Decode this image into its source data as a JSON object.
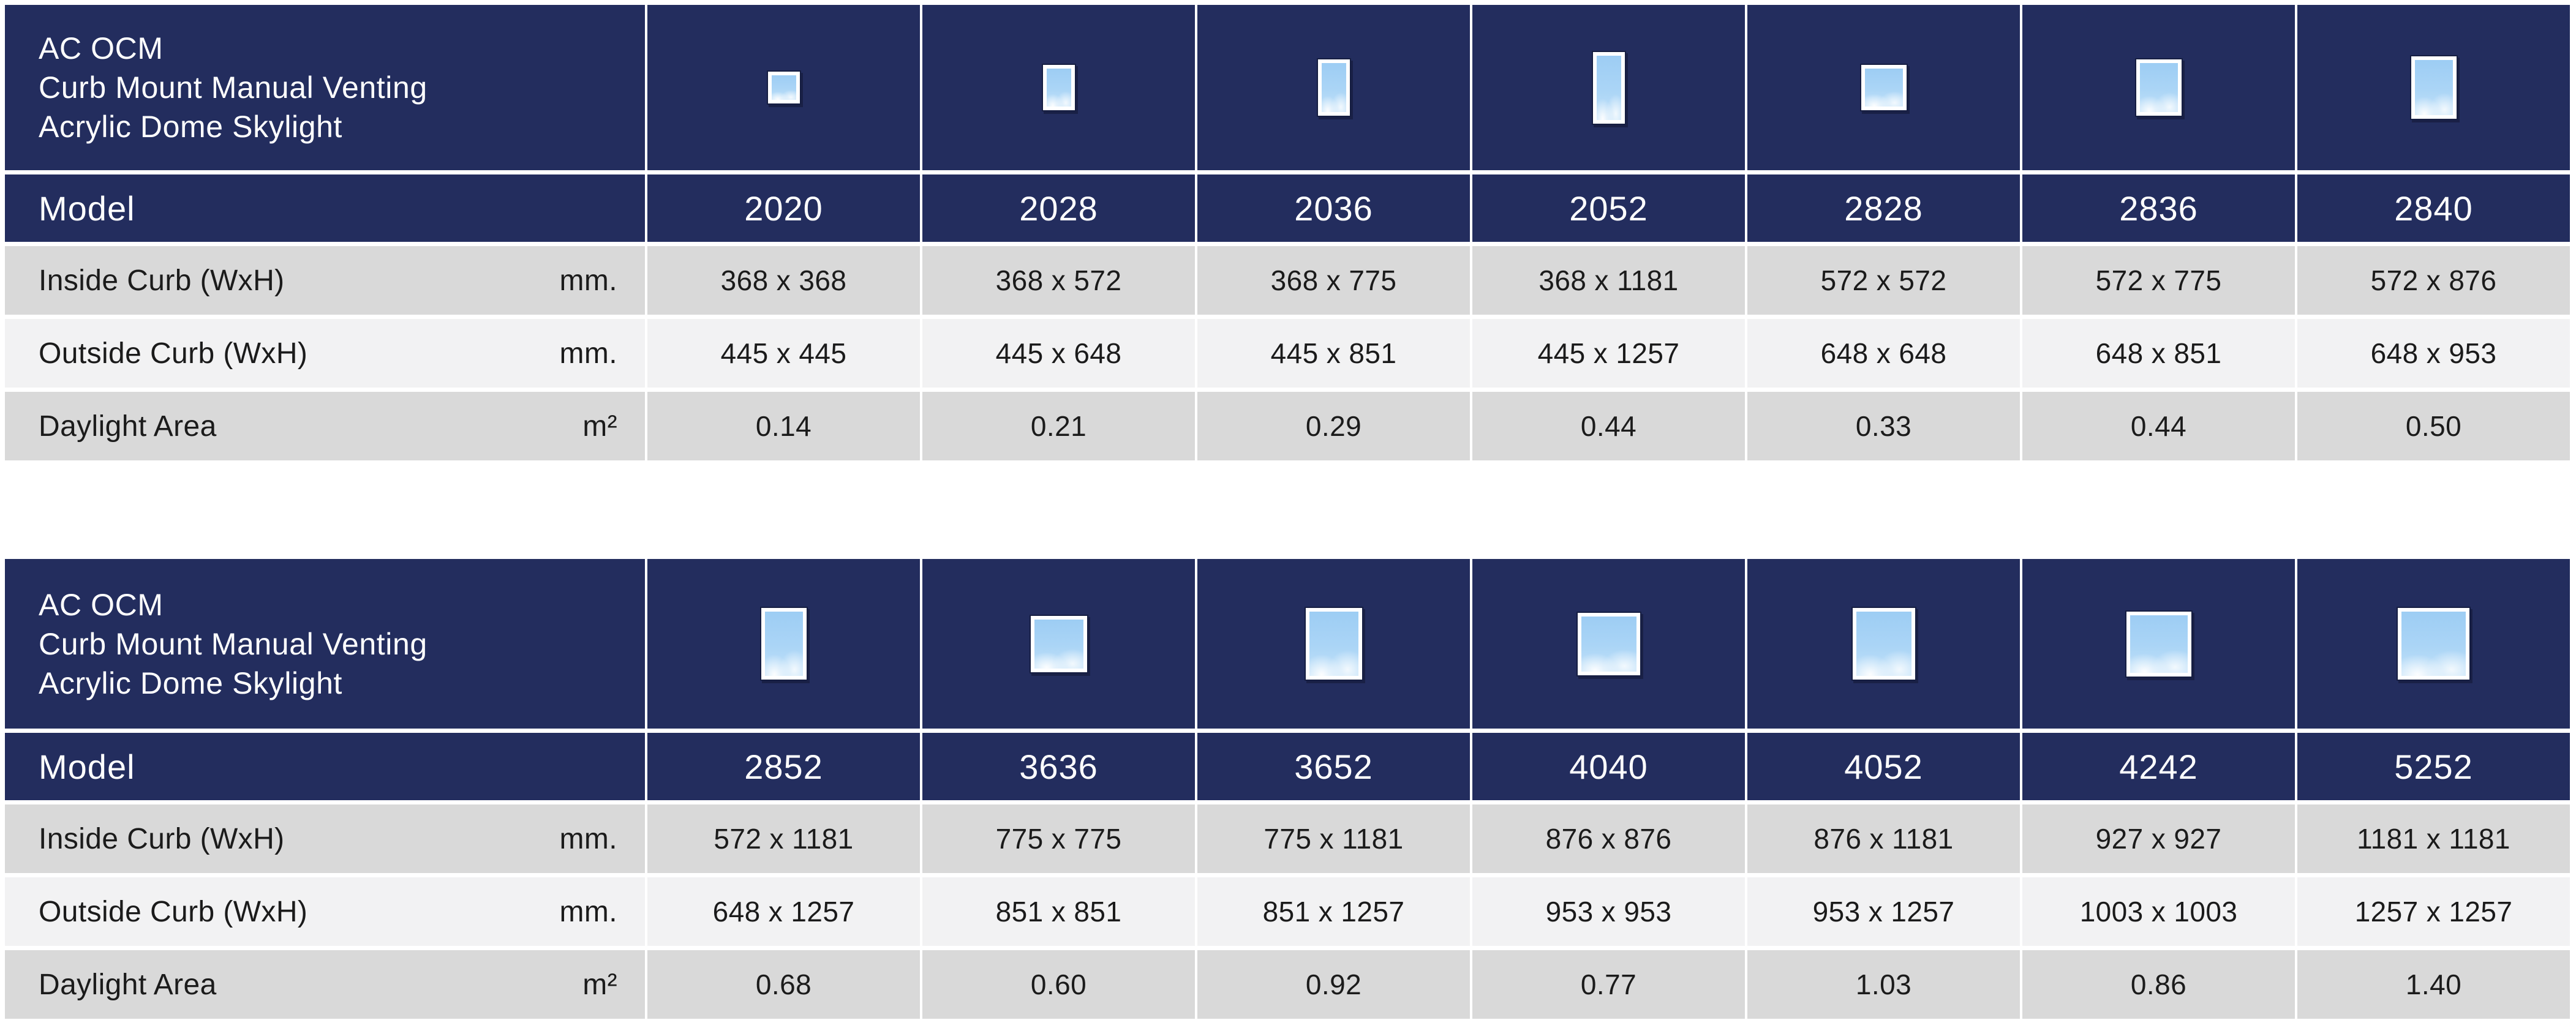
{
  "colors": {
    "navy": "#232d5e",
    "row_gray": "#d9d9d9",
    "row_light": "#f2f2f3",
    "divider_white": "#ffffff",
    "sky_blue": "#a9d3f5",
    "frame_white": "#ffffff",
    "text_dark": "#1b1b1b"
  },
  "icons": {
    "column_thumbnail": "skylight-top-view-sky-icon"
  },
  "tables": [
    {
      "title_lines": [
        "AC OCM",
        "Curb Mount Manual Venting",
        "Acrylic Dome Skylight"
      ],
      "model_label": "Model",
      "rows": [
        {
          "key": "inside_curb",
          "label": "Inside Curb (WxH)",
          "unit": "mm."
        },
        {
          "key": "outside_curb",
          "label": "Outside Curb (WxH)",
          "unit": "mm."
        },
        {
          "key": "daylight_area",
          "label": "Daylight Area",
          "unit": "m²"
        }
      ],
      "columns": [
        {
          "model": "2020",
          "inside_curb": "368 x 368",
          "outside_curb": "445 x 445",
          "daylight_area": "0.14",
          "thumb": {
            "w": 40,
            "h": 40
          }
        },
        {
          "model": "2028",
          "inside_curb": "368 x 572",
          "outside_curb": "445 x 648",
          "daylight_area": "0.21",
          "thumb": {
            "w": 40,
            "h": 62
          }
        },
        {
          "model": "2036",
          "inside_curb": "368 x 775",
          "outside_curb": "445 x 851",
          "daylight_area": "0.29",
          "thumb": {
            "w": 40,
            "h": 80
          }
        },
        {
          "model": "2052",
          "inside_curb": "368 x 1181",
          "outside_curb": "445 x 1257",
          "daylight_area": "0.44",
          "thumb": {
            "w": 40,
            "h": 105
          }
        },
        {
          "model": "2828",
          "inside_curb": "572 x 572",
          "outside_curb": "648 x 648",
          "daylight_area": "0.33",
          "thumb": {
            "w": 62,
            "h": 62
          }
        },
        {
          "model": "2836",
          "inside_curb": "572 x 775",
          "outside_curb": "648 x 851",
          "daylight_area": "0.44",
          "thumb": {
            "w": 62,
            "h": 80
          }
        },
        {
          "model": "2840",
          "inside_curb": "572 x 876",
          "outside_curb": "648 x 953",
          "daylight_area": "0.50",
          "thumb": {
            "w": 62,
            "h": 90
          }
        }
      ]
    },
    {
      "title_lines": [
        "AC OCM",
        "Curb Mount Manual Venting",
        "Acrylic Dome Skylight"
      ],
      "model_label": "Model",
      "rows": [
        {
          "key": "inside_curb",
          "label": "Inside Curb (WxH)",
          "unit": "mm."
        },
        {
          "key": "outside_curb",
          "label": "Outside Curb (WxH)",
          "unit": "mm."
        },
        {
          "key": "daylight_area",
          "label": "Daylight Area",
          "unit": "m²"
        }
      ],
      "columns": [
        {
          "model": "2852",
          "inside_curb": "572 x 1181",
          "outside_curb": "648 x 1257",
          "daylight_area": "0.68",
          "thumb": {
            "w": 62,
            "h": 105
          }
        },
        {
          "model": "3636",
          "inside_curb": "775 x 775",
          "outside_curb": "851 x 851",
          "daylight_area": "0.60",
          "thumb": {
            "w": 80,
            "h": 80
          }
        },
        {
          "model": "3652",
          "inside_curb": "775 x 1181",
          "outside_curb": "851 x 1257",
          "daylight_area": "0.92",
          "thumb": {
            "w": 80,
            "h": 105
          }
        },
        {
          "model": "4040",
          "inside_curb": "876 x 876",
          "outside_curb": "953 x 953",
          "daylight_area": "0.77",
          "thumb": {
            "w": 90,
            "h": 90
          }
        },
        {
          "model": "4052",
          "inside_curb": "876 x 1181",
          "outside_curb": "953 x 1257",
          "daylight_area": "1.03",
          "thumb": {
            "w": 90,
            "h": 105
          }
        },
        {
          "model": "4242",
          "inside_curb": "927 x 927",
          "outside_curb": "1003 x 1003",
          "daylight_area": "0.86",
          "thumb": {
            "w": 94,
            "h": 94
          }
        },
        {
          "model": "5252",
          "inside_curb": "1181 x 1181",
          "outside_curb": "1257 x 1257",
          "daylight_area": "1.40",
          "thumb": {
            "w": 105,
            "h": 105
          }
        }
      ]
    }
  ]
}
